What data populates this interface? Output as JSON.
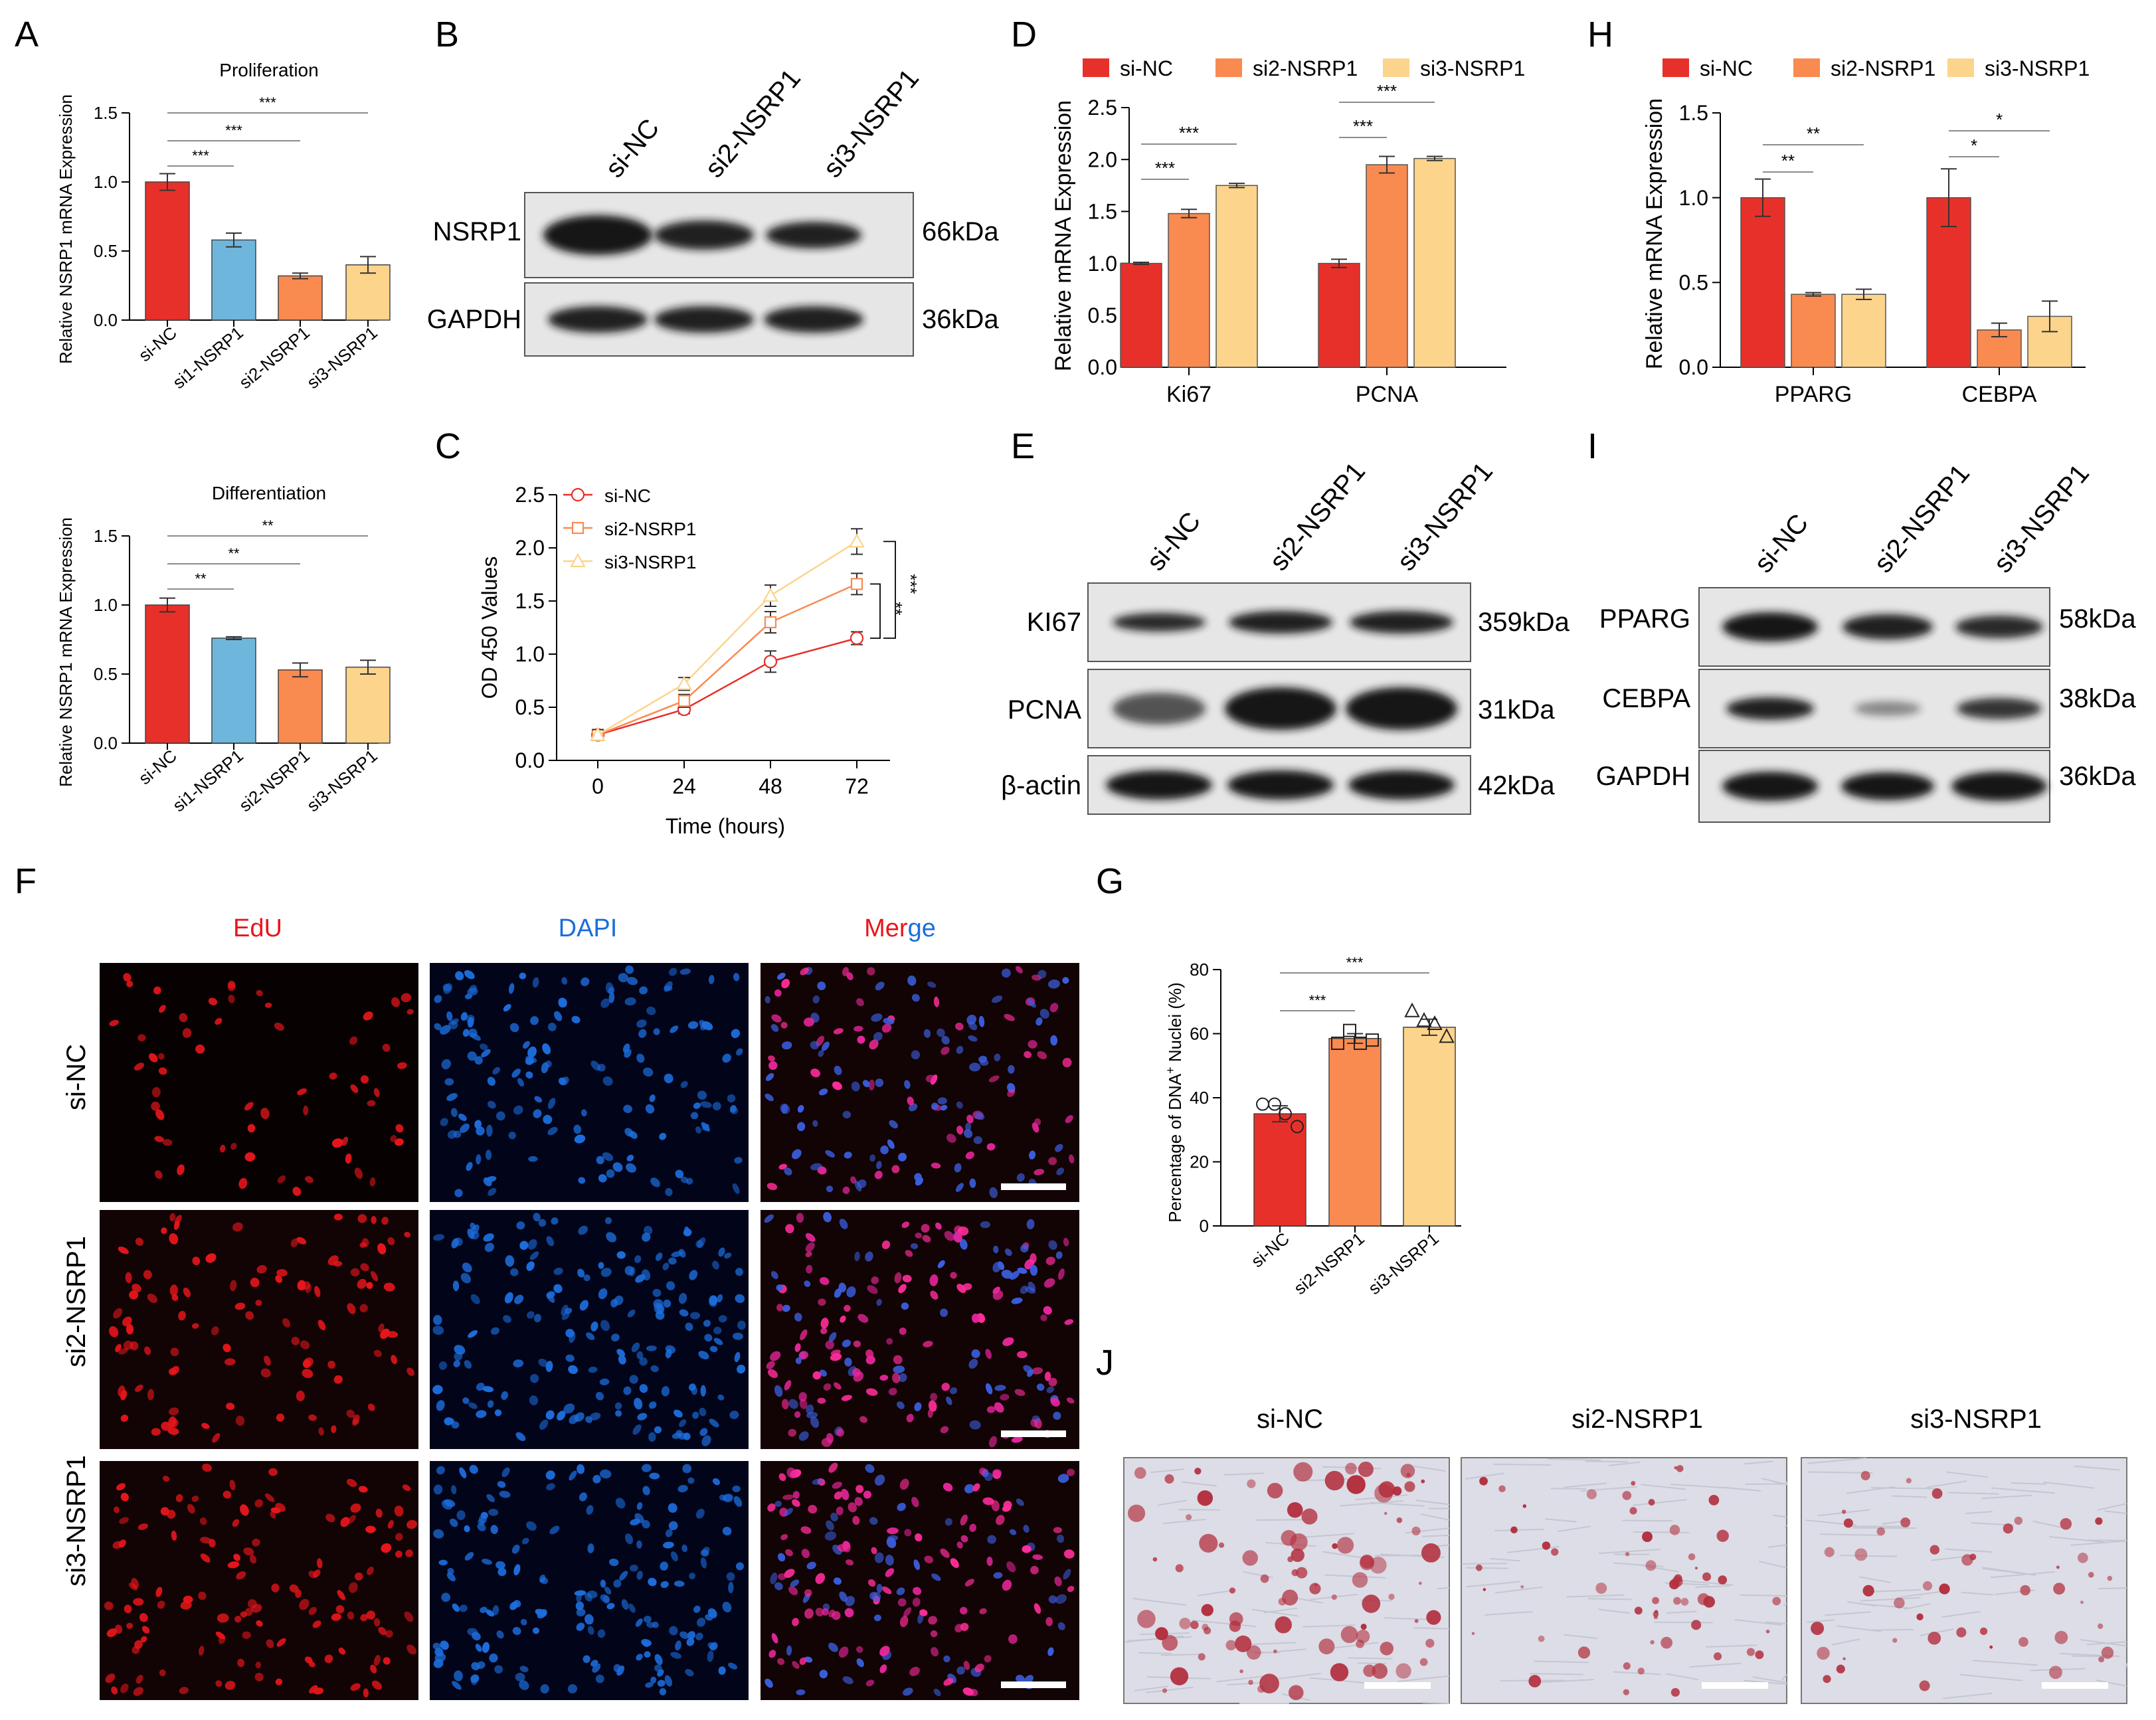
{
  "colors": {
    "si_nc": "#e8302a",
    "si1": "#6fb6dc",
    "si2": "#f98a50",
    "si3": "#fcd48c",
    "blot_bg": "#e6e6e6",
    "band": "#141414",
    "stain_bg": "#dcdde6",
    "stain_spot": "#b3303f",
    "edu": "#e8161c",
    "dapi": "#1c6ddb"
  },
  "panels": {
    "A": {
      "letter": "A",
      "top": {
        "title": "Proliferation",
        "ylabel": "Relative NSRP1 mRNA Expression",
        "yticks": [
          "0.0",
          "0.5",
          "1.0",
          "1.5"
        ],
        "sig": [
          "***",
          "***",
          "***"
        ]
      },
      "bottom": {
        "title": "Differentiation",
        "ylabel": "Relative NSRP1 mRNA Expression",
        "yticks": [
          "0.0",
          "0.5",
          "1.0",
          "1.5"
        ],
        "sig": [
          "**",
          "**",
          "**"
        ]
      },
      "categories": [
        "si-NC",
        "si1-NSRP1",
        "si2-NSRP1",
        "si3-NSRP1"
      ]
    },
    "B": {
      "letter": "B",
      "lanes": [
        "si-NC",
        "si2-NSRP1",
        "si3-NSRP1"
      ],
      "rows": [
        {
          "label": "NSRP1",
          "kda": "66kDa"
        },
        {
          "label": "GAPDH",
          "kda": "36kDa"
        }
      ]
    },
    "C": {
      "letter": "C",
      "ylabel": "OD 450 Values",
      "xlabel": "Time (hours)",
      "xticks": [
        "0",
        "24",
        "48",
        "72"
      ],
      "yticks": [
        "0.0",
        "0.5",
        "1.0",
        "1.5",
        "2.0",
        "2.5"
      ],
      "legend": [
        "si-NC",
        "si2-NSRP1",
        "si3-NSRP1"
      ],
      "sig": [
        "**",
        "***"
      ]
    },
    "D": {
      "letter": "D",
      "legend": [
        "si-NC",
        "si2-NSRP1",
        "si3-NSRP1"
      ],
      "ylabel": "Relative mRNA Expression",
      "groups": [
        "Ki67",
        "PCNA"
      ],
      "yticks": [
        "0.0",
        "0.5",
        "1.0",
        "1.5",
        "2.0",
        "2.5"
      ],
      "sig": [
        "***",
        "***",
        "***",
        "***"
      ]
    },
    "E": {
      "letter": "E",
      "lanes": [
        "si-NC",
        "si2-NSRP1",
        "si3-NSRP1"
      ],
      "rows": [
        {
          "label": "KI67",
          "kda": "359kDa"
        },
        {
          "label": "PCNA",
          "kda": "31kDa"
        },
        {
          "label": "β-actin",
          "kda": "42kDa"
        }
      ]
    },
    "F": {
      "letter": "F",
      "columns": [
        "EdU",
        "DAPI"
      ],
      "merge_a": "Mer",
      "merge_b": "ge",
      "rows": [
        "si-NC",
        "si2-NSRP1",
        "si3-NSRP1"
      ]
    },
    "G": {
      "letter": "G",
      "ylabel_prefix": "Percentage of DNA",
      "ylabel_sup": "+",
      "ylabel_suffix": " Nuclei (%)",
      "yticks": [
        "0",
        "20",
        "40",
        "60",
        "80"
      ],
      "categories": [
        "si-NC",
        "si2-NSRP1",
        "si3-NSRP1"
      ],
      "sig": [
        "***",
        "***"
      ]
    },
    "H": {
      "letter": "H",
      "legend": [
        "si-NC",
        "si2-NSRP1",
        "si3-NSRP1"
      ],
      "ylabel": "Relative mRNA Expression",
      "groups": [
        "PPARG",
        "CEBPA"
      ],
      "yticks": [
        "0.0",
        "0.5",
        "1.0",
        "1.5"
      ],
      "sig": [
        "**",
        "**",
        "*",
        "*"
      ]
    },
    "I": {
      "letter": "I",
      "lanes": [
        "si-NC",
        "si2-NSRP1",
        "si3-NSRP1"
      ],
      "rows": [
        {
          "label": "PPARG",
          "kda": "58kDa"
        },
        {
          "label": "CEBPA",
          "kda": "38kDa"
        },
        {
          "label": "GAPDH",
          "kda": "36kDa"
        }
      ]
    },
    "J": {
      "letter": "J",
      "titles": [
        "si-NC",
        "si2-NSRP1",
        "si3-NSRP1"
      ]
    }
  },
  "chart_data": [
    {
      "panel": "A-top",
      "type": "bar",
      "categories": [
        "si-NC",
        "si1-NSRP1",
        "si2-NSRP1",
        "si3-NSRP1"
      ],
      "values": [
        1.0,
        0.58,
        0.32,
        0.4
      ],
      "errors": [
        0.06,
        0.05,
        0.02,
        0.06
      ],
      "title": "Proliferation",
      "ylabel": "Relative NSRP1 mRNA Expression",
      "ylim": [
        0,
        1.5
      ]
    },
    {
      "panel": "A-bottom",
      "type": "bar",
      "categories": [
        "si-NC",
        "si1-NSRP1",
        "si2-NSRP1",
        "si3-NSRP1"
      ],
      "values": [
        1.0,
        0.76,
        0.53,
        0.55
      ],
      "errors": [
        0.05,
        0.01,
        0.05,
        0.05
      ],
      "title": "Differentiation",
      "ylabel": "Relative NSRP1 mRNA Expression",
      "ylim": [
        0,
        1.5
      ]
    },
    {
      "panel": "C",
      "type": "line",
      "x": [
        0,
        24,
        48,
        72
      ],
      "series": [
        {
          "name": "si-NC",
          "values": [
            0.24,
            0.48,
            0.93,
            1.15
          ],
          "errors": [
            0.05,
            0.04,
            0.1,
            0.06
          ]
        },
        {
          "name": "si2-NSRP1",
          "values": [
            0.24,
            0.56,
            1.3,
            1.66
          ],
          "errors": [
            0.05,
            0.06,
            0.1,
            0.1
          ]
        },
        {
          "name": "si3-NSRP1",
          "values": [
            0.24,
            0.72,
            1.55,
            2.06
          ],
          "errors": [
            0.05,
            0.06,
            0.1,
            0.12
          ]
        }
      ],
      "xlabel": "Time (hours)",
      "ylabel": "OD 450 Values",
      "ylim": [
        0,
        2.5
      ]
    },
    {
      "panel": "D",
      "type": "bar",
      "categories": [
        "Ki67",
        "PCNA"
      ],
      "series": [
        {
          "name": "si-NC",
          "values": [
            1.0,
            1.0
          ],
          "errors": [
            0.01,
            0.04
          ]
        },
        {
          "name": "si2-NSRP1",
          "values": [
            1.48,
            1.95
          ],
          "errors": [
            0.04,
            0.08
          ]
        },
        {
          "name": "si3-NSRP1",
          "values": [
            1.75,
            2.01
          ],
          "errors": [
            0.02,
            0.02
          ]
        }
      ],
      "ylabel": "Relative mRNA Expression",
      "ylim": [
        0,
        2.5
      ]
    },
    {
      "panel": "G",
      "type": "bar",
      "categories": [
        "si-NC",
        "si2-NSRP1",
        "si3-NSRP1"
      ],
      "values": [
        35,
        58.5,
        62
      ],
      "errors": [
        2.5,
        1.5,
        2.5
      ],
      "points": [
        [
          38,
          38,
          35,
          31
        ],
        [
          57,
          61,
          57,
          58
        ],
        [
          67,
          64,
          63,
          59
        ]
      ],
      "ylabel": "Percentage of DNA+ Nuclei (%)",
      "ylim": [
        0,
        80
      ]
    },
    {
      "panel": "H",
      "type": "bar",
      "categories": [
        "PPARG",
        "CEBPA"
      ],
      "series": [
        {
          "name": "si-NC",
          "values": [
            1.0,
            1.0
          ],
          "errors": [
            0.11,
            0.17
          ]
        },
        {
          "name": "si2-NSRP1",
          "values": [
            0.43,
            0.22
          ],
          "errors": [
            0.01,
            0.04
          ]
        },
        {
          "name": "si3-NSRP1",
          "values": [
            0.43,
            0.3
          ],
          "errors": [
            0.03,
            0.09
          ]
        }
      ],
      "ylabel": "Relative mRNA Expression",
      "ylim": [
        0,
        1.5
      ]
    }
  ]
}
